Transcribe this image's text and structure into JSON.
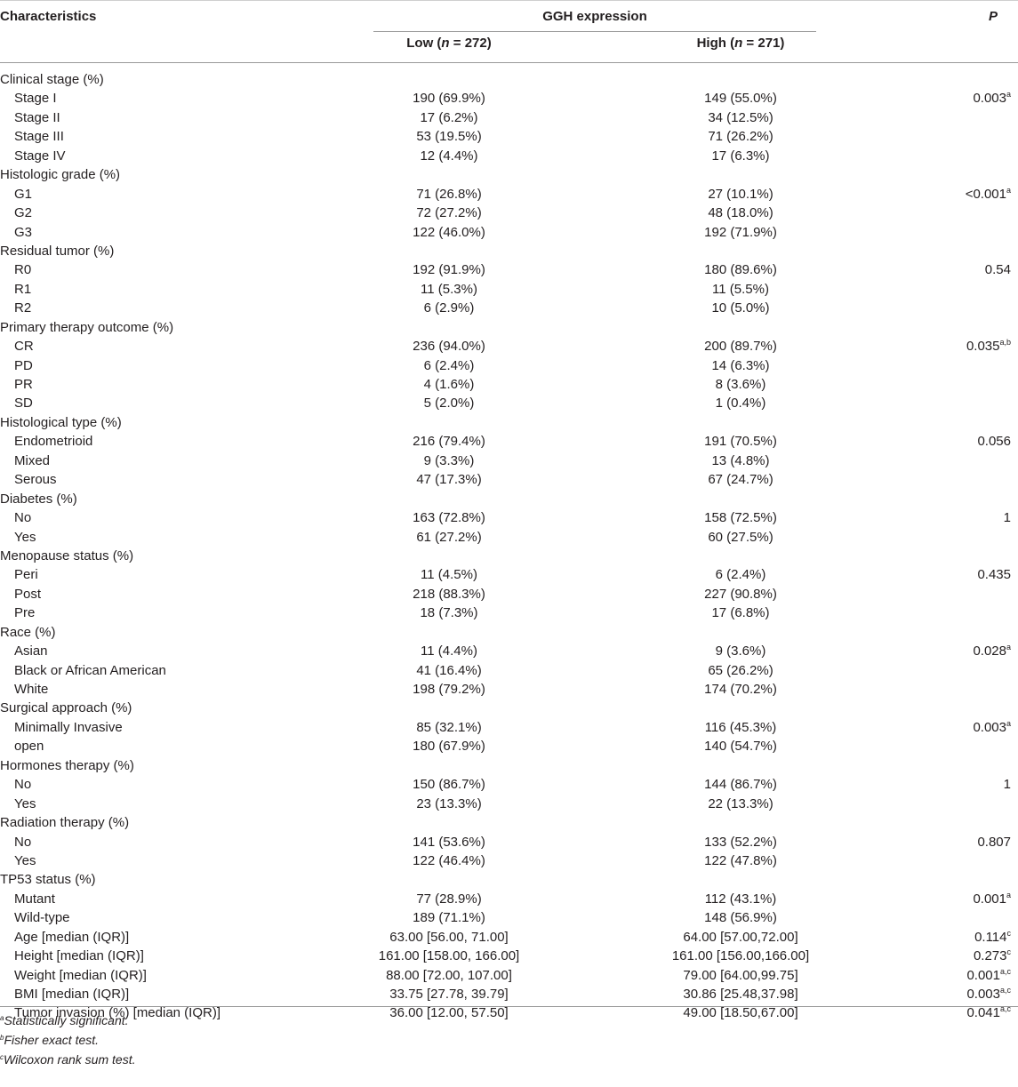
{
  "header": {
    "characteristics": "Characteristics",
    "group": "GGH expression",
    "p": "P",
    "low": {
      "prefix": "Low (",
      "n": "n",
      "suffix": " = 272)"
    },
    "high": {
      "prefix": "High (",
      "n": "n",
      "suffix": " = 271)"
    }
  },
  "rows": [
    {
      "label": "Clinical stage (%)",
      "cat": true
    },
    {
      "label": "Stage I",
      "low": "190 (69.9%)",
      "high": "149 (55.0%)",
      "p": "0.003",
      "sup": "a"
    },
    {
      "label": "Stage II",
      "low": "17 (6.2%)",
      "high": "34 (12.5%)"
    },
    {
      "label": "Stage III",
      "low": "53 (19.5%)",
      "high": "71 (26.2%)"
    },
    {
      "label": "Stage IV",
      "low": "12 (4.4%)",
      "high": "17 (6.3%)"
    },
    {
      "label": "Histologic grade (%)",
      "cat": true
    },
    {
      "label": "G1",
      "low": "71 (26.8%)",
      "high": "27 (10.1%)",
      "p": "<0.001",
      "sup": "a"
    },
    {
      "label": "G2",
      "low": "72 (27.2%)",
      "high": "48 (18.0%)"
    },
    {
      "label": "G3",
      "low": "122 (46.0%)",
      "high": "192 (71.9%)"
    },
    {
      "label": "Residual tumor (%)",
      "cat": true
    },
    {
      "label": "R0",
      "low": "192 (91.9%)",
      "high": "180 (89.6%)",
      "p": "0.54"
    },
    {
      "label": "R1",
      "low": "11 (5.3%)",
      "high": "11 (5.5%)"
    },
    {
      "label": "R2",
      "low": "6 (2.9%)",
      "high": "10 (5.0%)"
    },
    {
      "label": "Primary therapy outcome (%)",
      "cat": true
    },
    {
      "label": "CR",
      "low": "236 (94.0%)",
      "high": "200 (89.7%)",
      "p": "0.035",
      "sup": "a,b"
    },
    {
      "label": "PD",
      "low": "6 (2.4%)",
      "high": "14 (6.3%)"
    },
    {
      "label": "PR",
      "low": "4 (1.6%)",
      "high": "8 (3.6%)"
    },
    {
      "label": "SD",
      "low": "5 (2.0%)",
      "high": "1 (0.4%)"
    },
    {
      "label": "Histological type (%)",
      "cat": true
    },
    {
      "label": "Endometrioid",
      "low": "216 (79.4%)",
      "high": "191 (70.5%)",
      "p": "0.056"
    },
    {
      "label": "Mixed",
      "low": "9 (3.3%)",
      "high": "13 (4.8%)"
    },
    {
      "label": "Serous",
      "low": "47 (17.3%)",
      "high": "67 (24.7%)"
    },
    {
      "label": "Diabetes (%)",
      "cat": true
    },
    {
      "label": "No",
      "low": "163 (72.8%)",
      "high": "158 (72.5%)",
      "p": "1"
    },
    {
      "label": "Yes",
      "low": "61 (27.2%)",
      "high": "60 (27.5%)"
    },
    {
      "label": "Menopause status (%)",
      "cat": true
    },
    {
      "label": "Peri",
      "low": "11 (4.5%)",
      "high": "6 (2.4%)",
      "p": "0.435"
    },
    {
      "label": "Post",
      "low": "218 (88.3%)",
      "high": "227 (90.8%)"
    },
    {
      "label": "Pre",
      "low": "18 (7.3%)",
      "high": "17 (6.8%)"
    },
    {
      "label": "Race (%)",
      "cat": true
    },
    {
      "label": "Asian",
      "low": "11 (4.4%)",
      "high": "9 (3.6%)",
      "p": "0.028",
      "sup": "a"
    },
    {
      "label": "Black or African American",
      "low": "41 (16.4%)",
      "high": "65 (26.2%)"
    },
    {
      "label": "White",
      "low": "198 (79.2%)",
      "high": "174 (70.2%)"
    },
    {
      "label": "Surgical approach (%)",
      "cat": true
    },
    {
      "label": "Minimally Invasive",
      "low": "85 (32.1%)",
      "high": "116 (45.3%)",
      "p": "0.003",
      "sup": "a"
    },
    {
      "label": "open",
      "low": "180 (67.9%)",
      "high": "140 (54.7%)"
    },
    {
      "label": "Hormones therapy (%)",
      "cat": true
    },
    {
      "label": "No",
      "low": "150 (86.7%)",
      "high": "144 (86.7%)",
      "p": "1"
    },
    {
      "label": "Yes",
      "low": "23 (13.3%)",
      "high": "22 (13.3%)"
    },
    {
      "label": "Radiation therapy (%)",
      "cat": true
    },
    {
      "label": "No",
      "low": "141 (53.6%)",
      "high": "133 (52.2%)",
      "p": "0.807"
    },
    {
      "label": "Yes",
      "low": "122 (46.4%)",
      "high": "122 (47.8%)"
    },
    {
      "label": "TP53 status (%)",
      "cat": true
    },
    {
      "label": "Mutant",
      "low": "77 (28.9%)",
      "high": "112 (43.1%)",
      "p": "0.001",
      "sup": "a"
    },
    {
      "label": "Wild-type",
      "low": "189 (71.1%)",
      "high": "148 (56.9%)"
    },
    {
      "label": "Age [median (IQR)]",
      "low": "63.00 [56.00, 71.00]",
      "high": "64.00 [57.00,72.00]",
      "p": "0.114",
      "sup": "c"
    },
    {
      "label": "Height [median (IQR)]",
      "low": "161.00 [158.00, 166.00]",
      "high": "161.00 [156.00,166.00]",
      "p": "0.273",
      "sup": "c"
    },
    {
      "label": "Weight [median (IQR)]",
      "low": "88.00 [72.00, 107.00]",
      "high": "79.00 [64.00,99.75]",
      "p": "0.001",
      "sup": "a,c"
    },
    {
      "label": "BMI [median (IQR)]",
      "low": "33.75 [27.78, 39.79]",
      "high": "30.86 [25.48,37.98]",
      "p": "0.003",
      "sup": "a,c"
    },
    {
      "label": "Tumor invasion (%) [median (IQR)]",
      "low": "36.00 [12.00, 57.50]",
      "high": "49.00 [18.50,67.00]",
      "p": "0.041",
      "sup": "a,c"
    }
  ],
  "footnotes": [
    {
      "mark": "a",
      "text": "Statistically significant."
    },
    {
      "mark": "b",
      "text": "Fisher exact test."
    },
    {
      "mark": "c",
      "text": "Wilcoxon rank sum test."
    }
  ]
}
